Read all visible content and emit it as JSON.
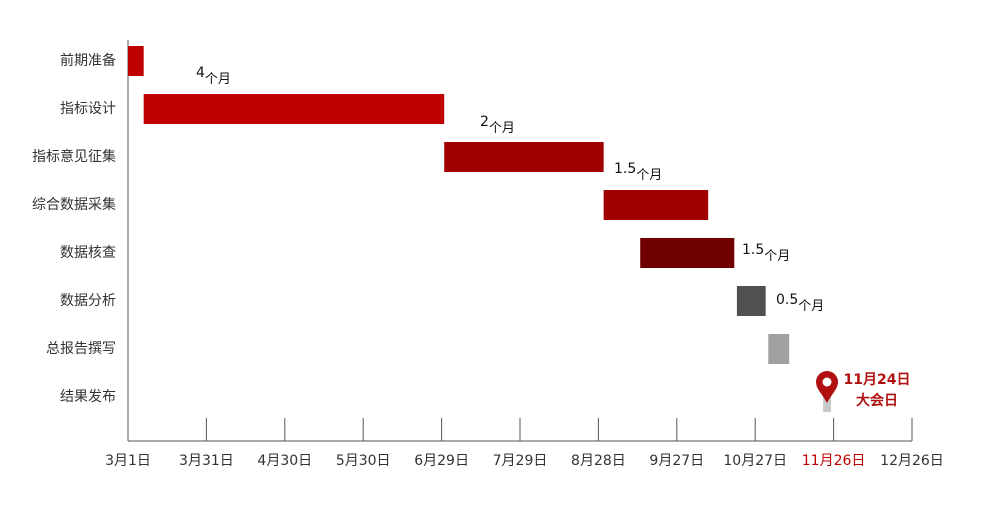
{
  "chart_data": {
    "type": "gantt",
    "categories": [
      "前期准备",
      "指标设计",
      "指标意见征集",
      "综合数据采集",
      "数据核查",
      "数据分析",
      "总报告撰写",
      "结果发布"
    ],
    "tasks": [
      {
        "start": 0,
        "end": 6,
        "color": "#c00000"
      },
      {
        "start": 6,
        "end": 121,
        "color": "#c00000"
      },
      {
        "start": 121,
        "end": 182,
        "color": "#a00000"
      },
      {
        "start": 182,
        "end": 222,
        "color": "#a00000"
      },
      {
        "start": 196,
        "end": 232,
        "color": "#700000"
      },
      {
        "start": 233,
        "end": 244,
        "color": "#505050"
      },
      {
        "start": 245,
        "end": 253,
        "color": "#a0a0a0"
      },
      {
        "start": 266,
        "end": 269,
        "color": "#c8c8c8"
      }
    ],
    "durations": [
      null,
      4,
      2,
      1.5,
      1.5,
      0.5,
      null,
      null
    ],
    "duration_unit": "个月",
    "xlim": [
      0,
      300
    ],
    "xticks": [
      {
        "value": 0,
        "label": "3月1日"
      },
      {
        "value": 30,
        "label": "3月31日"
      },
      {
        "value": 60,
        "label": "4月30日"
      },
      {
        "value": 90,
        "label": "5月30日"
      },
      {
        "value": 120,
        "label": "6月29日"
      },
      {
        "value": 150,
        "label": "7月29日"
      },
      {
        "value": 180,
        "label": "8月28日"
      },
      {
        "value": 210,
        "label": "9月27日"
      },
      {
        "value": 240,
        "label": "10月27日"
      },
      {
        "value": 270,
        "label": "11月26日",
        "color": "#c00000"
      },
      {
        "value": 300,
        "label": "12月26日"
      }
    ],
    "marker": {
      "date": "11月24日",
      "note": "大会日",
      "color": "#b01010"
    }
  }
}
